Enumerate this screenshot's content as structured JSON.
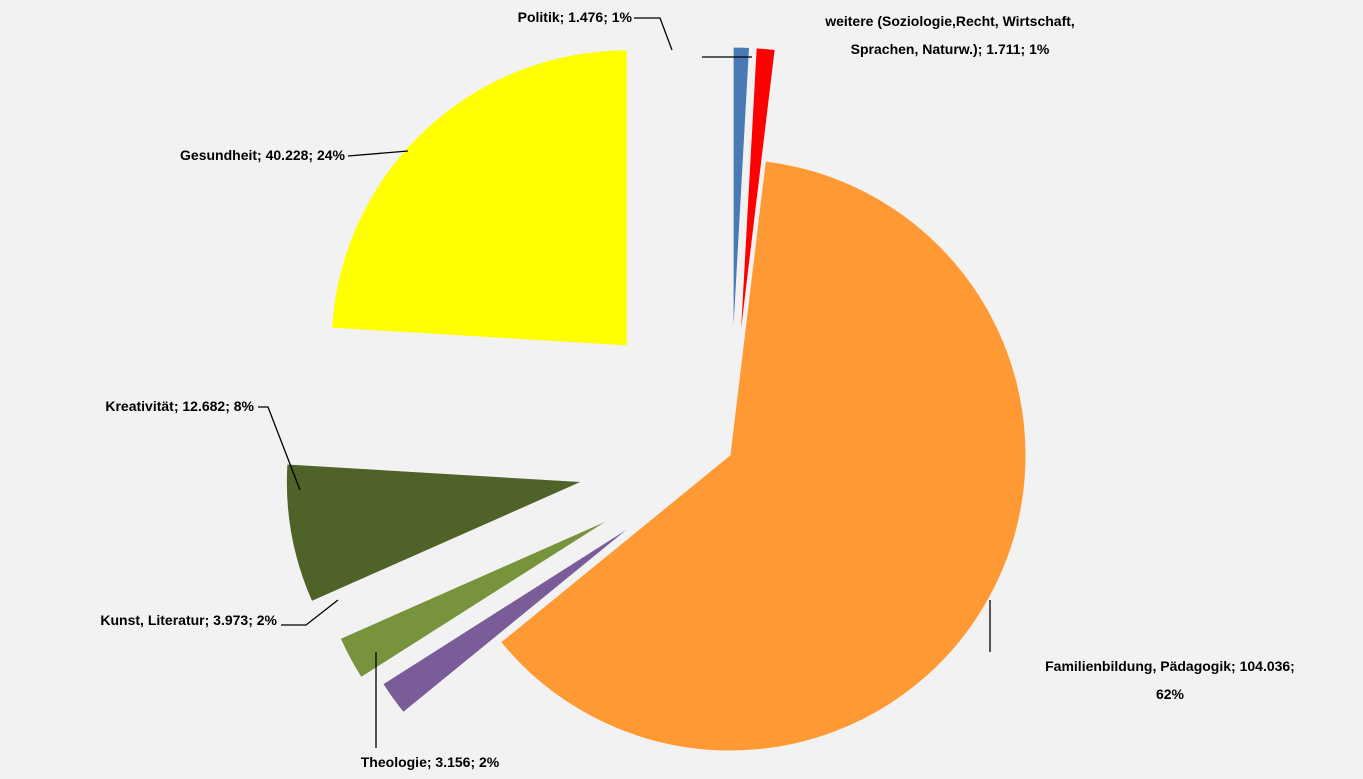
{
  "chart_data": {
    "type": "pie",
    "values": [
      1476,
      1711,
      104036,
      3156,
      3973,
      12682,
      40228
    ],
    "value_labels": [
      "Politik; 1.476; 1%",
      "weitere (Soziologie,Recht, Wirtschaft,\nSprachen, Naturw.); 1.711; 1%",
      "Familienbildung, Pädagogik; 104.036;\n62%",
      "Theologie; 3.156; 2%",
      "Kunst, Literatur; 3.973; 2%",
      "Kreativität; 12.682; 8%",
      "Gesundheit; 40.228; 24%"
    ],
    "colors": [
      "#4a7ab5",
      "#ff0000",
      "#ff9933",
      "#7a5c99",
      "#77933c",
      "#4f6228",
      "#ffff00"
    ]
  }
}
